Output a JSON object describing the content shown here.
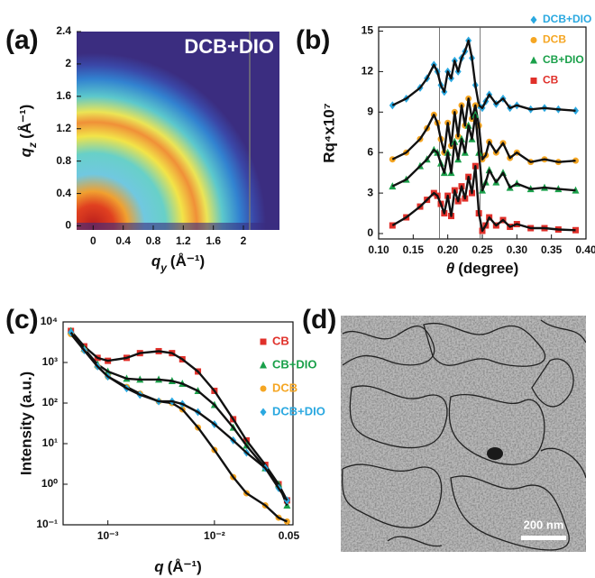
{
  "chart_data": [
    {
      "type": "heatmap",
      "panel_label": "(a)",
      "annotation": "DCB+DIO",
      "x_label": {
        "symbol": "q",
        "subscript": "y",
        "unit": "(Å⁻¹)"
      },
      "y_label": {
        "symbol": "q",
        "subscript": "z",
        "unit": "(Å⁻¹)"
      },
      "xlim": [
        -0.22,
        2.48
      ],
      "ylim": [
        -0.05,
        2.4
      ],
      "xticks": [
        0,
        0.4,
        0.8,
        1.2,
        1.6,
        2
      ],
      "yticks": [
        0,
        0.4,
        0.8,
        1.2,
        1.6,
        2,
        2.4
      ]
    },
    {
      "type": "line",
      "panel_label": "(b)",
      "x_label": {
        "symbol": "θ",
        "unit": "(degree)"
      },
      "y_label": "Rq⁴x10⁷",
      "xlim": [
        0.1,
        0.4
      ],
      "ylim": [
        -0.4,
        15.3
      ],
      "xticks": [
        {
          "value": 0.1,
          "label": "0.10"
        },
        0.15,
        {
          "value": 0.2,
          "label": "0.20"
        },
        0.25,
        {
          "value": 0.3,
          "label": "0.30"
        },
        0.35,
        {
          "value": 0.4,
          "label": "0.40"
        }
      ],
      "yticks": [
        0,
        3,
        6,
        9,
        12,
        15
      ],
      "vlines": [
        0.188,
        0.247
      ],
      "legend": "upper right",
      "x": [
        0.12,
        0.14,
        0.16,
        0.17,
        0.18,
        0.185,
        0.19,
        0.195,
        0.2,
        0.205,
        0.21,
        0.215,
        0.22,
        0.225,
        0.23,
        0.235,
        0.24,
        0.245,
        0.25,
        0.255,
        0.26,
        0.27,
        0.28,
        0.29,
        0.3,
        0.32,
        0.34,
        0.36,
        0.385
      ],
      "series": [
        {
          "name": "DCB+DIO",
          "color": "#2aa8e0",
          "marker": "diamond",
          "values": [
            9.5,
            10.0,
            10.8,
            11.5,
            12.5,
            12.0,
            11.0,
            10.5,
            12.0,
            11.5,
            12.8,
            12.0,
            13.0,
            13.5,
            14.3,
            13.0,
            11.0,
            9.5,
            9.3,
            9.8,
            10.3,
            9.6,
            10.0,
            9.3,
            9.5,
            9.2,
            9.3,
            9.2,
            9.1
          ]
        },
        {
          "name": "DCB",
          "color": "#f5a623",
          "marker": "circle",
          "values": [
            5.5,
            6.0,
            7.0,
            7.8,
            8.8,
            8.2,
            7.0,
            6.0,
            8.2,
            6.5,
            9.0,
            7.2,
            9.5,
            8.0,
            10.0,
            8.5,
            9.5,
            8.0,
            5.5,
            5.8,
            6.8,
            6.0,
            6.7,
            5.6,
            6.0,
            5.3,
            5.5,
            5.3,
            5.4
          ]
        },
        {
          "name": "CB+DIO",
          "color": "#1aa04a",
          "marker": "triangle",
          "values": [
            3.5,
            4.0,
            5.0,
            5.5,
            6.2,
            6.0,
            5.2,
            4.5,
            6.0,
            4.5,
            6.8,
            5.5,
            7.0,
            6.0,
            8.0,
            7.0,
            8.8,
            6.0,
            3.2,
            3.8,
            4.7,
            3.8,
            4.5,
            3.4,
            3.7,
            3.3,
            3.4,
            3.3,
            3.2
          ]
        },
        {
          "name": "CB",
          "color": "#e0302a",
          "marker": "square",
          "values": [
            0.6,
            1.2,
            2.0,
            2.5,
            3.0,
            2.8,
            2.2,
            1.5,
            2.8,
            1.3,
            3.2,
            2.4,
            3.5,
            2.6,
            4.2,
            3.0,
            5.0,
            1.5,
            0.2,
            0.6,
            1.2,
            0.6,
            1.0,
            0.5,
            0.7,
            0.4,
            0.4,
            0.3,
            0.25
          ]
        }
      ]
    },
    {
      "type": "line",
      "panel_label": "(c)",
      "xscale": "log",
      "yscale": "log",
      "x_label": {
        "symbol": "q",
        "unit": "(Å⁻¹)"
      },
      "y_label": "Intensity (a.u.)",
      "xlim": [
        0.00038,
        0.0546
      ],
      "ylim": [
        0.1,
        10000
      ],
      "xticks": [
        {
          "value": 0.001,
          "label": "10⁻³"
        },
        {
          "value": 0.01,
          "label": "10⁻²"
        },
        0.05
      ],
      "yticks": [
        {
          "value": 0.1,
          "label": "10⁻¹"
        },
        {
          "value": 1,
          "label": "10⁰"
        },
        {
          "value": 10,
          "label": "10¹"
        },
        {
          "value": 100,
          "label": "10²"
        },
        {
          "value": 1000,
          "label": "10³"
        },
        {
          "value": 10000,
          "label": "10⁴"
        }
      ],
      "legend": "upper right",
      "x": [
        0.00045,
        0.0006,
        0.0008,
        0.001,
        0.0015,
        0.002,
        0.003,
        0.004,
        0.005,
        0.007,
        0.01,
        0.015,
        0.02,
        0.03,
        0.04,
        0.048
      ],
      "series": [
        {
          "name": "CB",
          "color": "#e0302a",
          "marker": "square",
          "values": [
            6000,
            2500,
            1300,
            1100,
            1300,
            1700,
            1900,
            1700,
            1200,
            600,
            200,
            40,
            12,
            3,
            1,
            0.4
          ]
        },
        {
          "name": "CB+DIO",
          "color": "#1aa04a",
          "marker": "triangle",
          "values": [
            6000,
            2200,
            900,
            600,
            400,
            380,
            380,
            350,
            300,
            200,
            90,
            25,
            9,
            2.5,
            1,
            0.3
          ]
        },
        {
          "name": "DCB",
          "color": "#f5a623",
          "marker": "circle",
          "values": [
            5000,
            2000,
            800,
            450,
            250,
            170,
            110,
            100,
            70,
            25,
            7,
            1.5,
            0.6,
            0.3,
            0.15,
            0.12
          ]
        },
        {
          "name": "DCB+DIO",
          "color": "#2aa8e0",
          "marker": "diamond",
          "values": [
            5500,
            2000,
            800,
            450,
            230,
            160,
            110,
            110,
            95,
            60,
            30,
            12,
            6,
            2.5,
            0.8,
            0.4
          ]
        }
      ]
    },
    {
      "type": "image",
      "panel_label": "(d)",
      "scale_bar": "200 nm"
    }
  ]
}
